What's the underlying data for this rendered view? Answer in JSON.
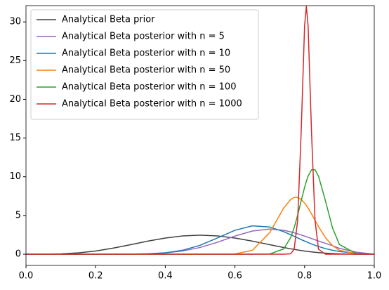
{
  "chart_data": {
    "type": "line",
    "x": [
      0,
      0.05,
      0.1,
      0.15,
      0.2,
      0.25,
      0.3,
      0.35,
      0.4,
      0.45,
      0.5,
      0.55,
      0.6,
      0.65,
      0.7,
      0.74,
      0.76,
      0.77,
      0.78,
      0.79,
      0.8,
      0.805,
      0.81,
      0.82,
      0.83,
      0.84,
      0.86,
      0.88,
      0.9,
      0.95,
      1.0
    ],
    "series": [
      {
        "name": "Analytical Beta prior",
        "color": "#404040",
        "values": [
          0,
          0.003,
          0.041,
          0.167,
          0.413,
          0.779,
          1.225,
          1.688,
          2.09,
          2.364,
          2.461,
          2.364,
          2.09,
          1.688,
          1.225,
          0.863,
          0.697,
          0.62,
          0.546,
          0.477,
          0.413,
          0.383,
          0.353,
          0.299,
          0.25,
          0.206,
          0.132,
          0.078,
          0.041,
          0.003,
          0
        ]
      },
      {
        "name": "Analytical Beta posterior with n = 5",
        "color": "#9467bd",
        "values": [
          0,
          0,
          0,
          0,
          0.001,
          0.004,
          0.017,
          0.057,
          0.167,
          0.414,
          0.868,
          1.55,
          2.34,
          2.99,
          3.25,
          3.08,
          2.89,
          2.76,
          2.63,
          2.49,
          2.34,
          2.26,
          2.18,
          2.02,
          1.86,
          1.7,
          1.4,
          1.1,
          0.75,
          0.25,
          0
        ]
      },
      {
        "name": "Analytical Beta posterior with n = 10",
        "color": "#1f77b4",
        "values": [
          0,
          0,
          0,
          0,
          0,
          0.002,
          0.012,
          0.052,
          0.183,
          0.51,
          1.15,
          2.1,
          3.09,
          3.66,
          3.51,
          2.91,
          2.51,
          2.31,
          2.1,
          1.89,
          1.69,
          1.6,
          1.5,
          1.32,
          1.15,
          0.99,
          0.72,
          0.51,
          0.35,
          0.11,
          0
        ]
      },
      {
        "name": "Analytical Beta posterior with n = 50",
        "color": "#ff7f0e",
        "values": [
          0,
          0,
          0,
          0,
          0,
          0,
          0,
          0,
          0,
          0,
          0,
          0.01,
          0.04,
          0.5,
          2.8,
          5.96,
          7.07,
          7.33,
          7.33,
          7.07,
          6.6,
          6.3,
          5.96,
          5.19,
          4.37,
          3.56,
          2.13,
          1.11,
          0.5,
          0.04,
          0
        ]
      },
      {
        "name": "Analytical Beta posterior with n = 100",
        "color": "#2ca02c",
        "values": [
          0,
          0,
          0,
          0,
          0,
          0,
          0,
          0,
          0,
          0,
          0,
          0,
          0,
          0,
          0.03,
          0.68,
          2.15,
          3.42,
          5.03,
          6.86,
          8.64,
          9.4,
          10.08,
          10.9,
          10.9,
          10.08,
          6.86,
          3.42,
          1.25,
          0.03,
          0
        ]
      },
      {
        "name": "Analytical Beta posterior with n = 1000",
        "color": "#d62728",
        "values": [
          0,
          0,
          0,
          0,
          0,
          0,
          0,
          0,
          0,
          0,
          0,
          0,
          0,
          0,
          0,
          0,
          0.05,
          0.63,
          4.33,
          15.6,
          29.5,
          32,
          29.5,
          15.6,
          4.33,
          0.63,
          0,
          0,
          0,
          0,
          0
        ]
      }
    ],
    "xlim": [
      0,
      1
    ],
    "ylim": [
      -1.45,
      32.1
    ],
    "xticks": [
      {
        "value": 0,
        "label": "0.0"
      },
      {
        "value": 0.2,
        "label": "0.2"
      },
      {
        "value": 0.4,
        "label": "0.4"
      },
      {
        "value": 0.6,
        "label": "0.6"
      },
      {
        "value": 0.8,
        "label": "0.8"
      },
      {
        "value": 1,
        "label": "1.0"
      }
    ],
    "yticks": [
      0,
      5,
      10,
      15,
      20,
      25,
      30
    ],
    "legend": "upper left"
  }
}
